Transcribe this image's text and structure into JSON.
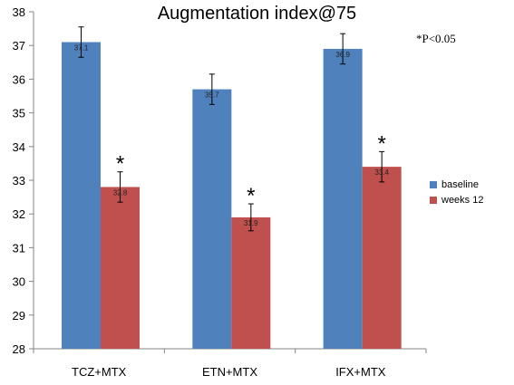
{
  "annotation": "*P<0.05",
  "colors": {
    "baseline": "#4F81BD",
    "weeks12": "#C0504D",
    "axis": "#868686"
  },
  "chart_data": {
    "type": "bar",
    "title": "Augmentation index@75",
    "xlabel": "",
    "ylabel": "",
    "ylim": [
      28,
      38
    ],
    "yticks": [
      "28",
      "29",
      "30",
      "31",
      "32",
      "33",
      "34",
      "35",
      "36",
      "37",
      "38"
    ],
    "categories": [
      "TCZ+MTX",
      "ETN+MTX",
      "IFX+MTX"
    ],
    "series": [
      {
        "name": "baseline",
        "values": [
          37.1,
          35.7,
          36.9
        ],
        "labels": [
          "37.1",
          "35.7",
          "36.9"
        ],
        "errors": [
          0.45,
          0.45,
          0.45
        ],
        "significant": [
          "",
          "",
          ""
        ]
      },
      {
        "name": "weeks 12",
        "values": [
          32.8,
          31.9,
          33.4
        ],
        "labels": [
          "32.8",
          "31.9",
          "33.4"
        ],
        "errors": [
          0.45,
          0.4,
          0.45
        ],
        "significant": [
          "*",
          "*",
          "*"
        ]
      }
    ],
    "legend_position": "right",
    "grid": false
  }
}
